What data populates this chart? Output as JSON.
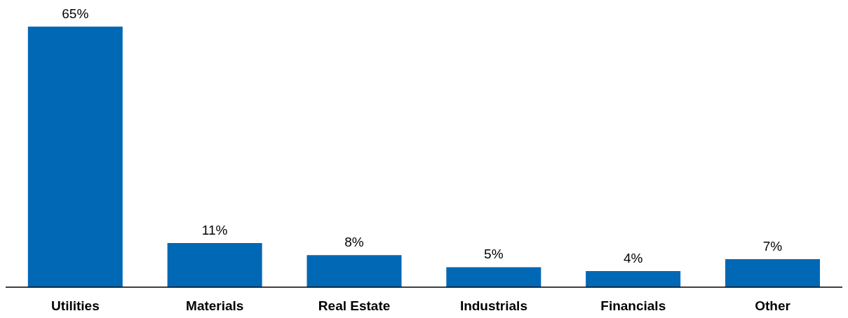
{
  "chart_data": {
    "type": "bar",
    "categories": [
      "Utilities",
      "Materials",
      "Real Estate",
      "Industrials",
      "Financials",
      "Other"
    ],
    "values": [
      65,
      11,
      8,
      5,
      4,
      7
    ],
    "value_labels": [
      "65%",
      "11%",
      "8%",
      "5%",
      "4%",
      "7%"
    ],
    "color": "#0068b4",
    "grid": false
  }
}
